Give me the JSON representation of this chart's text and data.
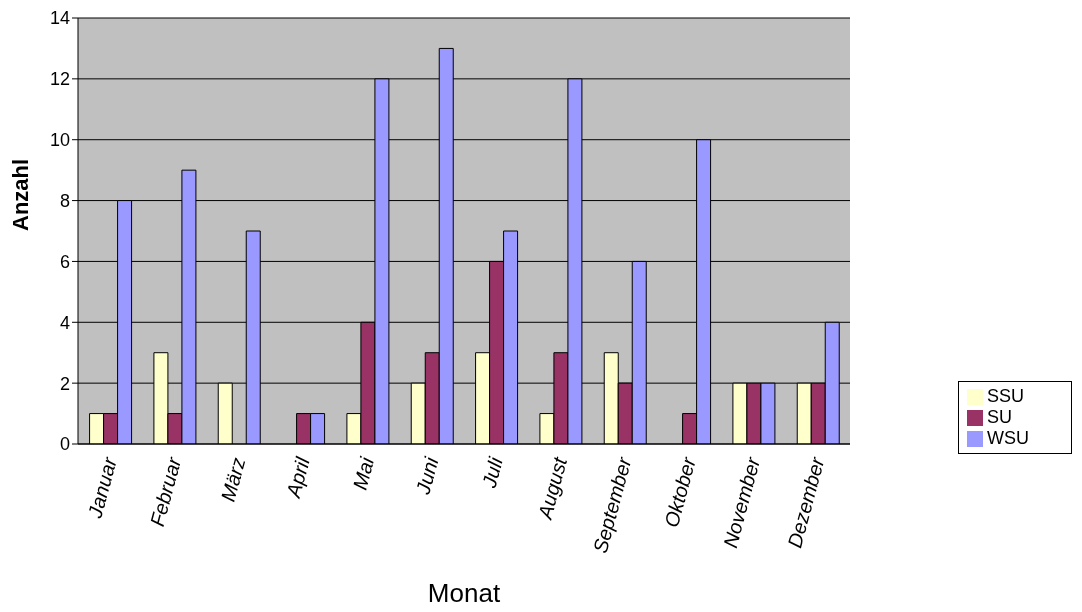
{
  "chart_data": {
    "type": "bar",
    "xlabel": "Monat",
    "ylabel": "Anzahl",
    "categories": [
      "Januar",
      "Februar",
      "März",
      "April",
      "Mai",
      "Juni",
      "Juli",
      "August",
      "September",
      "Oktober",
      "November",
      "Dezember"
    ],
    "series": [
      {
        "name": "SSU",
        "color": "#ffffcc",
        "values": [
          1,
          3,
          2,
          0,
          1,
          2,
          3,
          1,
          3,
          0,
          2,
          2
        ]
      },
      {
        "name": "SU",
        "color": "#993366",
        "values": [
          1,
          1,
          0,
          1,
          4,
          3,
          6,
          3,
          2,
          1,
          2,
          2
        ]
      },
      {
        "name": "WSU",
        "color": "#9999ff",
        "values": [
          8,
          9,
          7,
          1,
          12,
          13,
          7,
          12,
          6,
          10,
          2,
          4
        ]
      }
    ],
    "ylim": [
      0,
      14
    ],
    "yticks": [
      0,
      2,
      4,
      6,
      8,
      10,
      12,
      14
    ],
    "grid": "y",
    "legend": "right"
  }
}
